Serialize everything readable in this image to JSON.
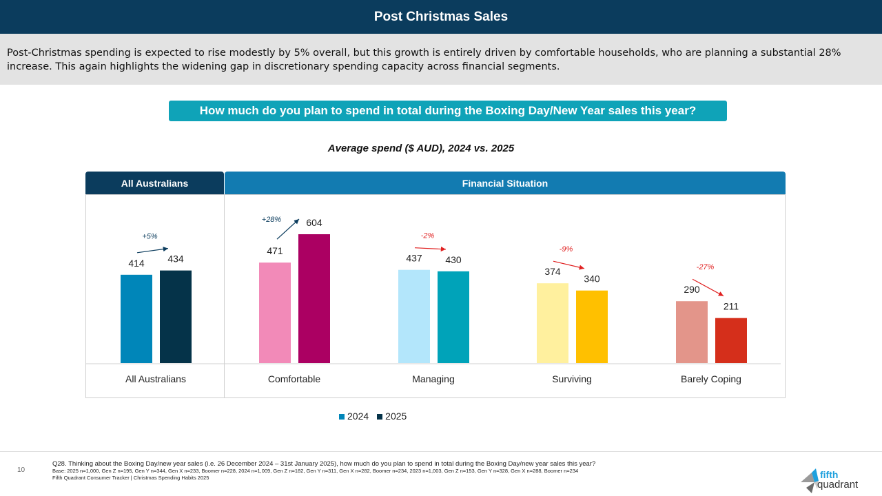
{
  "header": {
    "title": "Post Christmas Sales"
  },
  "summary": "Post-Christmas spending is expected to rise modestly by 5% overall, but this growth is entirely driven by comfortable households, who are planning a substantial 28% increase. This again highlights the widening gap in discretionary spending capacity across financial segments.",
  "question": "How much do you plan to spend in total during the Boxing Day/New Year sales this year?",
  "chart_data": {
    "type": "bar",
    "title": "Average spend ($ AUD), 2024 vs. 2025",
    "panels": [
      "All Australians",
      "Financial Situation"
    ],
    "categories": [
      "All Australians",
      "Comfortable",
      "Managing",
      "Surviving",
      "Barely Coping"
    ],
    "series": [
      {
        "name": "2024",
        "values": [
          414,
          471,
          437,
          374,
          290
        ],
        "colors": [
          "#0086b9",
          "#f28ab8",
          "#b3e6fb",
          "#fff09e",
          "#e3958a"
        ]
      },
      {
        "name": "2025",
        "values": [
          434,
          604,
          430,
          340,
          211
        ],
        "colors": [
          "#053349",
          "#ab0062",
          "#00a3b9",
          "#ffc000",
          "#d52f1b"
        ]
      }
    ],
    "changes": [
      "+5%",
      "+28%",
      "-2%",
      "-9%",
      "-27%"
    ],
    "change_colors": {
      "up": "#0b3c5d",
      "down": "#e02020"
    },
    "legend": {
      "position": "bottom",
      "colors": [
        "#0086b9",
        "#053349"
      ]
    },
    "ylim": [
      0,
      650
    ],
    "grid": false
  },
  "footer": {
    "page": "10",
    "question": "Q28. Thinking about the Boxing Day/new year sales (i.e. 26 December 2024 – 31st January 2025), how much do you plan to spend in total during the Boxing Day/new year sales this year?",
    "base": "Base: 2025 n=1,000, Gen Z n=195, Gen Y n=344, Gen X n=233, Boomer n=228, 2024 n=1,009, Gen Z n=182, Gen Y n=311, Gen X n=282, Boomer n=234, 2023 n=1,003, Gen Z n=153, Gen Y n=328, Gen X n=288, Boomer n=234",
    "source": "Fifth Quadrant Consumer Tracker | Christmas Spending Habits 2025"
  },
  "logo": {
    "line1": "fifth",
    "line2": "quadrant"
  }
}
